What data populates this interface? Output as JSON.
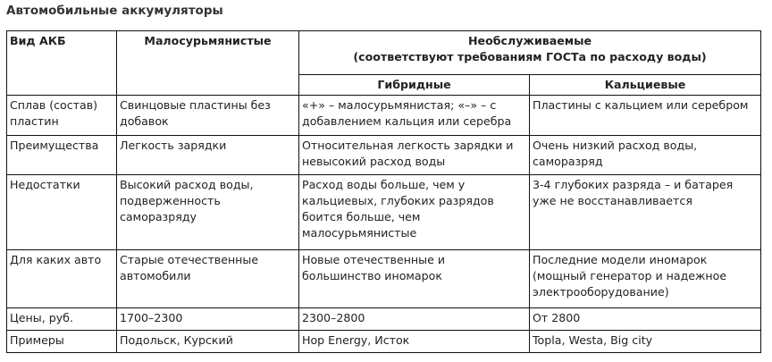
{
  "title": "Автомобильные аккумуляторы",
  "header": {
    "type_label": "Вид АКБ",
    "low_antimony": "Малосурьмянистые",
    "maintenance_free": "Необслуживаемые",
    "maintenance_free_note": "(соответствуют требованиям ГОСТа по расходу воды)",
    "hybrid": "Гибридные",
    "calcium": "Кальциевые"
  },
  "rows": [
    {
      "label": "Сплав (состав) пластин",
      "low_antimony": "Свинцовые пластины без добавок",
      "hybrid": "«+» – малосурьмянистая; «–» – с добавлением кальция или серебра",
      "calcium": "Пластины с кальцием или серебром"
    },
    {
      "label": "Преимущества",
      "low_antimony": "Легкость зарядки",
      "hybrid": "Относительная легкость зарядки и невысокий расход воды",
      "calcium": "Очень низкий расход воды, саморазряд"
    },
    {
      "label": "Недостатки",
      "low_antimony": "Высокий расход воды, подверженность саморазряду",
      "hybrid": "Расход воды больше, чем у кальциевых, глубоких разрядов боится больше, чем малосурьмянистые",
      "calcium": "3-4 глубоких разряда – и батарея уже не восстанавливается"
    },
    {
      "label": "Для каких авто",
      "low_antimony": "Старые отечественные автомобили",
      "hybrid": "Новые отечественные и большинство иномарок",
      "calcium": "Последние модели иномарок (мощный генератор и надежное электрооборудование)"
    },
    {
      "label": "Цены, руб.",
      "low_antimony": "1700–2300",
      "hybrid": "2300–2800",
      "calcium": "От 2800"
    },
    {
      "label": "Примеры",
      "low_antimony": "Подольск, Курский",
      "hybrid": "Hop Energy, Исток",
      "calcium": "Topla, Westa, Big city"
    }
  ]
}
